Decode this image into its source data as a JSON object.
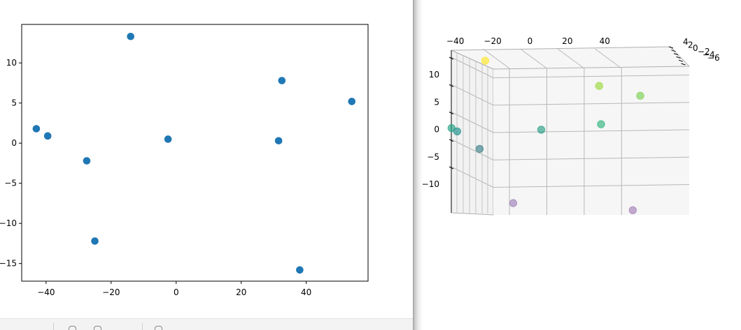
{
  "chart_data": [
    {
      "type": "scatter",
      "xlim": [
        -47.5,
        59
      ],
      "ylim": [
        -17.2,
        14.8
      ],
      "xticks": [
        -40,
        -20,
        0,
        20,
        40
      ],
      "yticks": [
        -15,
        -10,
        -5,
        0,
        5,
        10
      ],
      "xtick_labels": [
        "−40",
        "−20",
        "0",
        "20",
        "40"
      ],
      "ytick_labels": [
        "−15",
        "−10",
        "−5",
        "0",
        "5",
        "10"
      ],
      "grid": false,
      "series": [
        {
          "color": "#1f77b4",
          "points": [
            {
              "x": -43,
              "y": 1.8
            },
            {
              "x": -39.5,
              "y": 0.9
            },
            {
              "x": -27.5,
              "y": -2.2
            },
            {
              "x": -25,
              "y": -12.2
            },
            {
              "x": -14,
              "y": 13.3
            },
            {
              "x": -2.5,
              "y": 0.5
            },
            {
              "x": 31.5,
              "y": 0.3
            },
            {
              "x": 32.5,
              "y": 7.8
            },
            {
              "x": 38,
              "y": -15.8
            },
            {
              "x": 54,
              "y": 5.2
            }
          ]
        }
      ]
    },
    {
      "type": "scatter",
      "projection": "3d",
      "x_ticks": [
        -40,
        -20,
        0,
        20,
        40
      ],
      "x_tick_labels": [
        "−40",
        "−20",
        "0",
        "20",
        "40"
      ],
      "z_ticks": [
        -10,
        -5,
        0,
        5,
        10
      ],
      "z_tick_labels": [
        "−10",
        "−5",
        "0",
        "5",
        "10"
      ],
      "y_tick_labels": [
        "4",
        "2",
        "0",
        "−2",
        "−4",
        "−6"
      ],
      "grid": true,
      "colormap": "viridis",
      "points": [
        {
          "x": -42,
          "z": 0.5,
          "color": "#21a386"
        },
        {
          "x": -39,
          "z": -0.1,
          "color": "#21918c"
        },
        {
          "x": -27,
          "z": -3.3,
          "color": "#3b7f8a"
        },
        {
          "x": -9,
          "z": -13.2,
          "color": "#9e7fb8"
        },
        {
          "x": -24,
          "z": 12.8,
          "color": "#fde725"
        },
        {
          "x": 6,
          "z": 0.2,
          "color": "#2a9e86"
        },
        {
          "x": 38,
          "z": 1.2,
          "color": "#2fb47c"
        },
        {
          "x": 37,
          "z": 8.2,
          "color": "#9bd93c"
        },
        {
          "x": 59,
          "z": 6.4,
          "color": "#7ad151"
        },
        {
          "x": 55,
          "z": -14.5,
          "color": "#a47fb7"
        }
      ]
    }
  ]
}
